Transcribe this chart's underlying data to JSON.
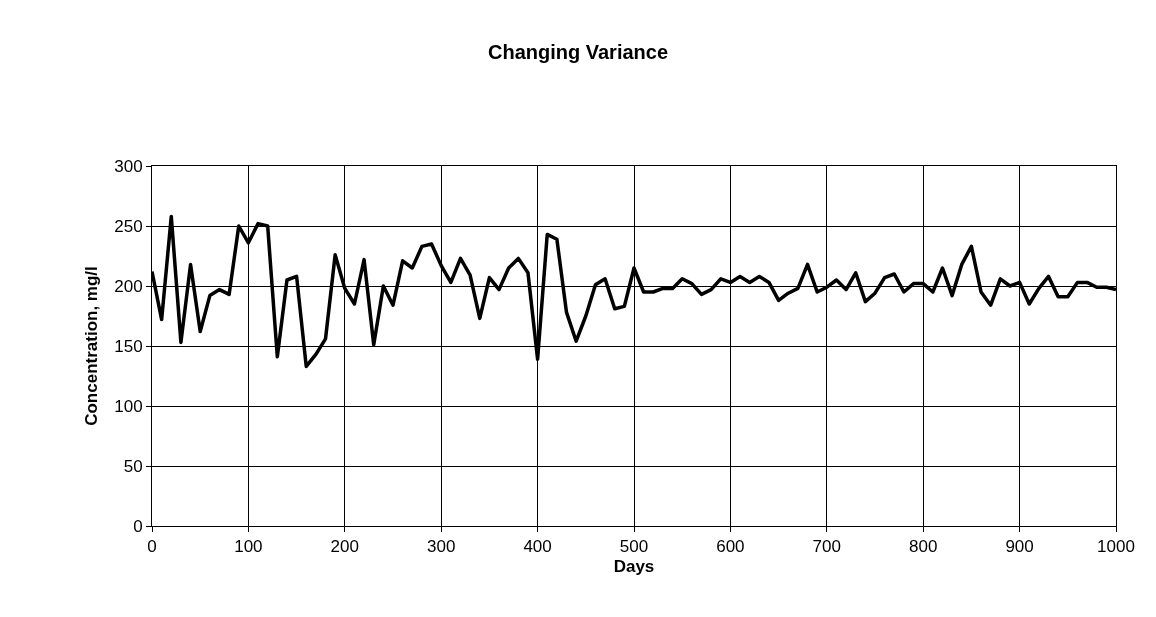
{
  "chart_data": {
    "type": "line",
    "title": "Changing Variance",
    "xlabel": "Days",
    "ylabel": "Concentration, mg/l",
    "x": [
      0,
      10,
      20,
      30,
      40,
      50,
      60,
      70,
      80,
      90,
      100,
      110,
      120,
      130,
      140,
      150,
      160,
      170,
      180,
      190,
      200,
      210,
      220,
      230,
      240,
      250,
      260,
      270,
      280,
      290,
      300,
      310,
      320,
      330,
      340,
      350,
      360,
      370,
      380,
      390,
      400,
      410,
      420,
      430,
      440,
      450,
      460,
      470,
      480,
      490,
      500,
      510,
      520,
      530,
      540,
      550,
      560,
      570,
      580,
      590,
      600,
      610,
      620,
      630,
      640,
      650,
      660,
      670,
      680,
      690,
      700,
      710,
      720,
      730,
      740,
      750,
      760,
      770,
      780,
      790,
      800,
      810,
      820,
      830,
      840,
      850,
      860,
      870,
      880,
      890,
      900,
      910,
      920,
      930,
      940,
      950,
      960,
      970,
      980,
      990,
      1000
    ],
    "values": [
      212,
      172,
      258,
      153,
      218,
      162,
      192,
      197,
      193,
      250,
      236,
      252,
      250,
      141,
      205,
      208,
      133,
      143,
      156,
      226,
      198,
      185,
      222,
      151,
      200,
      184,
      221,
      215,
      233,
      235,
      217,
      203,
      223,
      209,
      173,
      207,
      197,
      215,
      223,
      211,
      139,
      243,
      239,
      178,
      154,
      175,
      201,
      206,
      181,
      183,
      215,
      195,
      195,
      198,
      198,
      206,
      202,
      193,
      197,
      206,
      203,
      208,
      203,
      208,
      203,
      188,
      194,
      198,
      218,
      195,
      199,
      205,
      197,
      211,
      187,
      194,
      207,
      210,
      195,
      202,
      202,
      195,
      215,
      192,
      218,
      233,
      195,
      184,
      206,
      200,
      203,
      185,
      198,
      208,
      191,
      191,
      203,
      203,
      199,
      199,
      197
    ],
    "color": "#000000",
    "xlim": [
      0,
      1000
    ],
    "xticks": [
      0,
      100,
      200,
      300,
      400,
      500,
      600,
      700,
      800,
      900,
      1000
    ],
    "ylim": [
      0,
      300
    ],
    "yticks": [
      0,
      50,
      100,
      150,
      200,
      250,
      300
    ],
    "grid": true,
    "legend": false,
    "marker": "none",
    "line_style": "solid"
  }
}
